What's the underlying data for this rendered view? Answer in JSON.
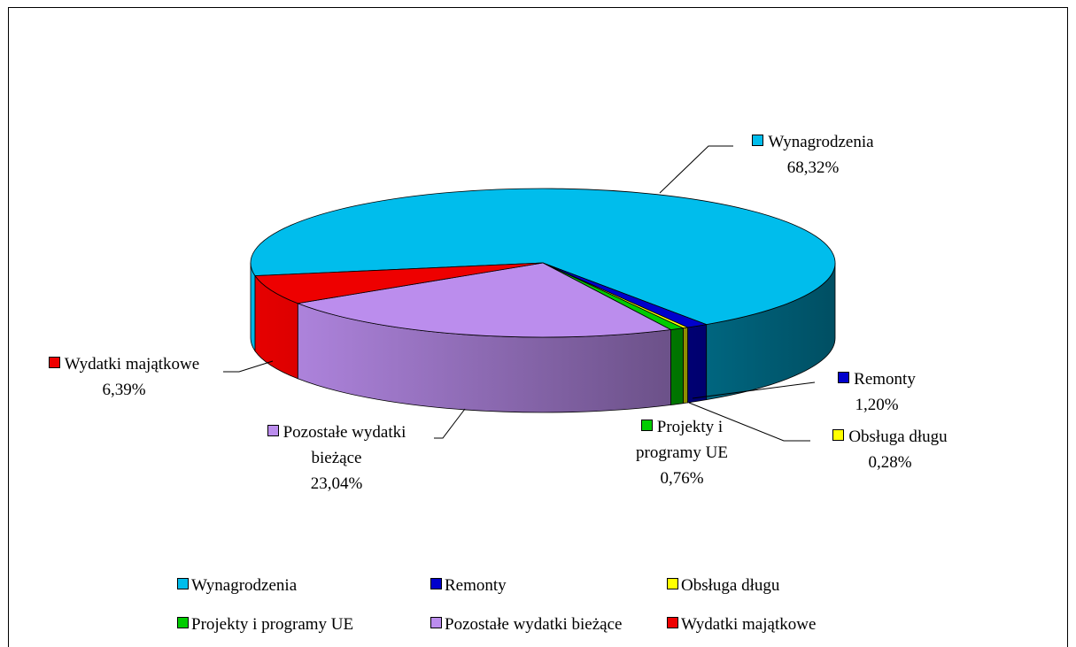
{
  "chart_data": {
    "type": "pie",
    "categories": [
      "Wynagrodzenia",
      "Remonty",
      "Obsługa długu",
      "Projekty i programy UE",
      "Pozostałe wydatki bieżące",
      "Wydatki majątkowe"
    ],
    "values": [
      68.32,
      1.2,
      0.28,
      0.76,
      23.04,
      6.39
    ],
    "value_labels": [
      "68,32%",
      "1,20%",
      "0,28%",
      "0,76%",
      "23,04%",
      "6,39%"
    ],
    "colors": [
      "#00bdec",
      "#0000cc",
      "#ffff00",
      "#00cc00",
      "#bb8ded",
      "#ee0000"
    ],
    "legend": "bottom"
  }
}
